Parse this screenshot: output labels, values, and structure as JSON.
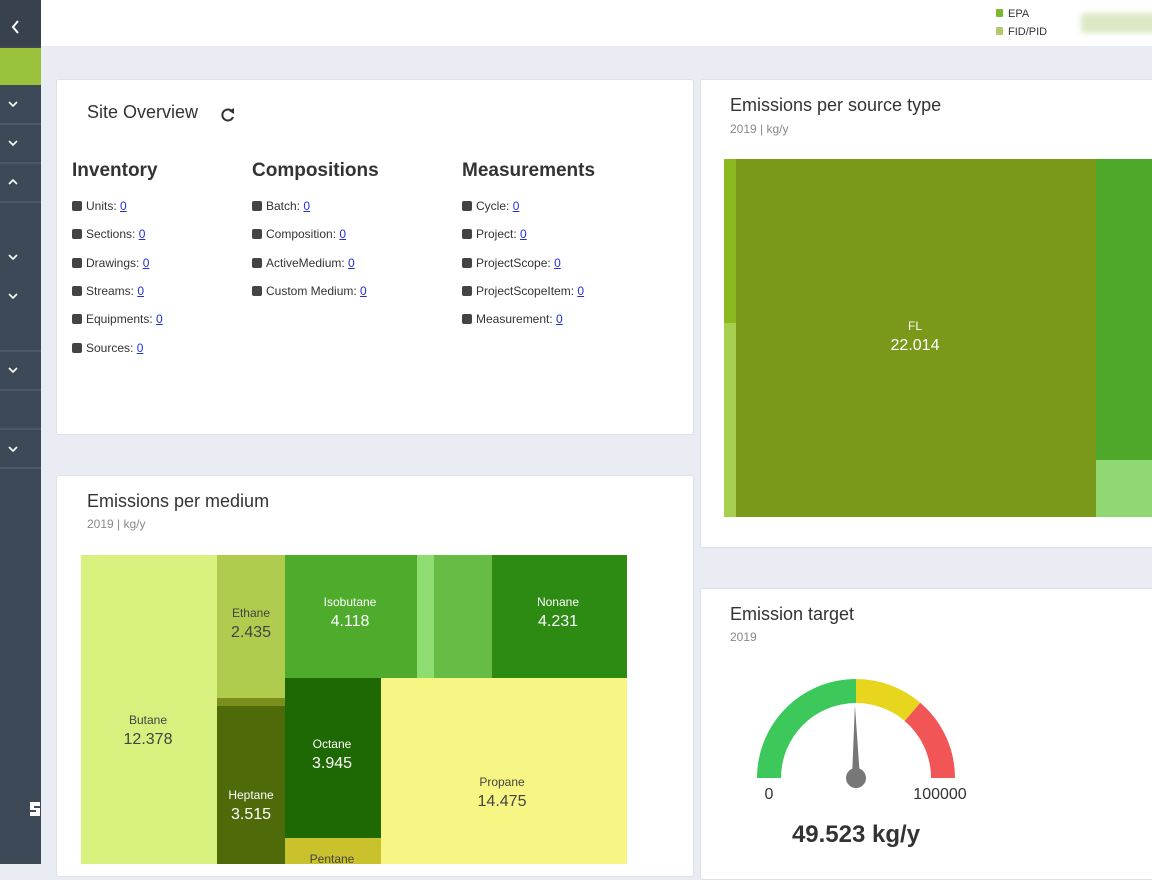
{
  "header": {
    "legend": [
      "EPA",
      "FID/PID"
    ]
  },
  "site_overview": {
    "title": "Site Overview",
    "columns": [
      {
        "heading": "Inventory",
        "items": [
          {
            "label": "Units:",
            "count": 0
          },
          {
            "label": "Sections:",
            "count": 0
          },
          {
            "label": "Drawings:",
            "count": 0
          },
          {
            "label": "Streams:",
            "count": 0
          },
          {
            "label": "Equipments:",
            "count": 0
          },
          {
            "label": "Sources:",
            "count": 0
          }
        ]
      },
      {
        "heading": "Compositions",
        "items": [
          {
            "label": "Batch:",
            "count": 0
          },
          {
            "label": "Composition:",
            "count": 0
          },
          {
            "label": "ActiveMedium:",
            "count": 0
          },
          {
            "label": "Custom Medium:",
            "count": 0
          }
        ]
      },
      {
        "heading": "Measurements",
        "items": [
          {
            "label": "Cycle:",
            "count": 0
          },
          {
            "label": "Project:",
            "count": 0
          },
          {
            "label": "ProjectScope:",
            "count": 0
          },
          {
            "label": "ProjectScopeItem:",
            "count": 0
          },
          {
            "label": "Measurement:",
            "count": 0
          }
        ]
      }
    ]
  },
  "chart_data": [
    {
      "type": "treemap",
      "title": "Emissions per source type",
      "subtitle": "2019 | kg/y",
      "items": [
        {
          "name": null,
          "value": 0.34,
          "color": "#8cb820"
        },
        {
          "name": null,
          "value": 0.4,
          "color": "#a8cf4f"
        },
        {
          "name": "FL",
          "value": 22.014,
          "color": "#7a991a"
        },
        {
          "name": null,
          "value": 2.86,
          "color": "#4ea92a"
        },
        {
          "name": null,
          "value": 0.55,
          "color": "#8fd872"
        }
      ]
    },
    {
      "type": "treemap",
      "title": "Emissions per medium",
      "subtitle": "2019 | kg/y",
      "items": [
        {
          "name": "Butane",
          "value": 12.378,
          "color": "#d8f07e"
        },
        {
          "name": "Ethane",
          "value": 2.435,
          "color": "#b0cc4f"
        },
        {
          "name": null,
          "value": 0.15,
          "color": "#7a8f1c"
        },
        {
          "name": "Heptane",
          "value": 3.515,
          "color": "#4e6a09"
        },
        {
          "name": "Isobutane",
          "value": 4.118,
          "color": "#4eab2b"
        },
        {
          "name": null,
          "value": 0.5,
          "color": "#8fdc70"
        },
        {
          "name": null,
          "value": 1.8,
          "color": "#67bc45"
        },
        {
          "name": "Nonane",
          "value": 4.231,
          "color": "#2d8a13"
        },
        {
          "name": "Octane",
          "value": 3.945,
          "color": "#1e6904"
        },
        {
          "name": "Pentane",
          "value": 1.5,
          "color": "#c9c22c"
        },
        {
          "name": "Propane",
          "value": 14.475,
          "color": "#f7f685"
        }
      ]
    },
    {
      "type": "gauge",
      "title": "Emission target",
      "subtitle": "2019",
      "min": 0,
      "max": 100000,
      "value": 49523,
      "value_label": "49.523 kg/y",
      "bands": [
        {
          "from": 0,
          "to": 50000,
          "color": "#3cc85a"
        },
        {
          "from": 50000,
          "to": 72500,
          "color": "#e8d51e"
        },
        {
          "from": 72500,
          "to": 100000,
          "color": "#f25555"
        }
      ]
    }
  ]
}
